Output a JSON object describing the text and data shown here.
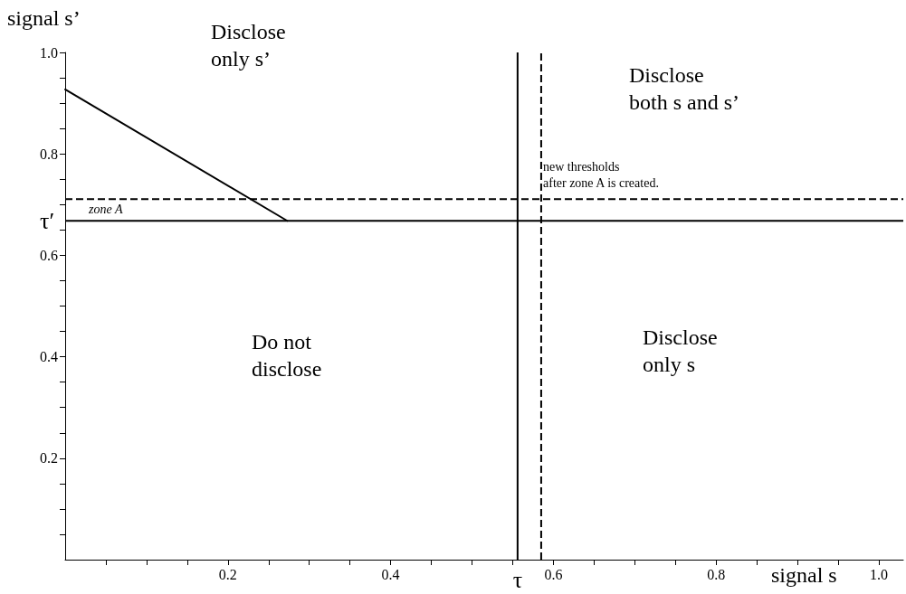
{
  "chart_data": {
    "type": "line",
    "xlabel": "signal s",
    "ylabel": "signal s’",
    "xlim": [
      0,
      1.03
    ],
    "ylim": [
      0,
      1.0
    ],
    "xticks": [
      {
        "value": 0.05,
        "label": null
      },
      {
        "value": 0.1,
        "label": null
      },
      {
        "value": 0.15,
        "label": null
      },
      0.2,
      {
        "value": 0.25,
        "label": null
      },
      {
        "value": 0.3,
        "label": null
      },
      {
        "value": 0.35,
        "label": null
      },
      0.4,
      {
        "value": 0.45,
        "label": null
      },
      {
        "value": 0.5,
        "label": null
      },
      {
        "value": 0.55,
        "label": null
      },
      0.6,
      {
        "value": 0.65,
        "label": null
      },
      {
        "value": 0.7,
        "label": null
      },
      {
        "value": 0.75,
        "label": null
      },
      0.8,
      {
        "value": 0.85,
        "label": null
      },
      {
        "value": 0.9,
        "label": null
      },
      {
        "value": 0.95,
        "label": null
      },
      {
        "value": 1.0,
        "label": "1.0"
      }
    ],
    "yticks": [
      {
        "value": 0.05,
        "label": null
      },
      {
        "value": 0.1,
        "label": null
      },
      {
        "value": 0.15,
        "label": null
      },
      0.2,
      {
        "value": 0.25,
        "label": null
      },
      {
        "value": 0.3,
        "label": null
      },
      {
        "value": 0.35,
        "label": null
      },
      0.4,
      {
        "value": 0.45,
        "label": null
      },
      {
        "value": 0.5,
        "label": null
      },
      {
        "value": 0.55,
        "label": null
      },
      0.6,
      {
        "value": 0.65,
        "label": null
      },
      {
        "value": 0.7,
        "label": null
      },
      {
        "value": 0.75,
        "label": null
      },
      0.8,
      {
        "value": 0.85,
        "label": null
      },
      {
        "value": 0.9,
        "label": null
      },
      {
        "value": 0.95,
        "label": null
      },
      {
        "value": 1.0,
        "label": "1.0"
      }
    ],
    "series": [
      {
        "color": "#000000",
        "x": [
          0,
          0.273
        ],
        "values": [
          0.927,
          0.668
        ]
      }
    ],
    "ref_lines": [
      {
        "axis": "x",
        "value": 0.556,
        "label": "τ",
        "line_style": "solid",
        "color": "#000000"
      },
      {
        "axis": "x",
        "value": 0.585,
        "label": null,
        "line_style": "dashed",
        "color": "#000000"
      },
      {
        "axis": "y",
        "value": 0.668,
        "label": "τ′",
        "line_style": "solid",
        "color": "#000000"
      },
      {
        "axis": "y",
        "value": 0.711,
        "label": null,
        "line_style": "dashed",
        "color": "#000000"
      }
    ],
    "annotations": [
      "Disclose\nonly s’",
      "Disclose\nboth s and s’",
      "Do not\ndisclose",
      "Disclose\nonly s",
      "zone A",
      "new thresholds\nafter zone A is created."
    ],
    "grid": false,
    "marker": "none",
    "line_style": "solid"
  }
}
